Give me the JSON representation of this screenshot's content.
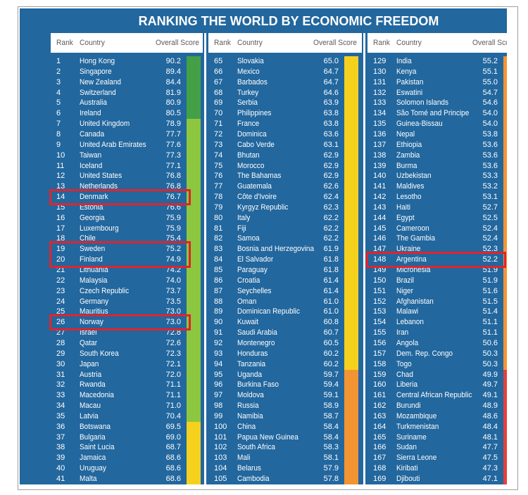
{
  "chart_data": {
    "type": "table",
    "title": "RANKING THE WORLD BY ECONOMIC FREEDOM",
    "headers": {
      "rank": "Rank",
      "country": "Country",
      "score": "Overall Score"
    },
    "colors": {
      "background": "#22679e",
      "header_background": "#ffffff",
      "header_text": "#5b5b5b",
      "row_text": "#ffffff",
      "highlight": "#e3232b"
    },
    "color_scale": [
      {
        "min": 80,
        "color": "#43a047"
      },
      {
        "min": 70,
        "color": "#8dc63f"
      },
      {
        "min": 60,
        "color": "#f5d11e"
      },
      {
        "min": 50,
        "color": "#f39433"
      },
      {
        "min": 0,
        "color": "#e2413b"
      }
    ],
    "panels": [
      {
        "highlighted_ranks": [
          [
            14
          ],
          [
            19,
            20
          ],
          [
            26
          ]
        ],
        "rows": [
          {
            "rank": 1,
            "country": "Hong Kong",
            "score": 90.2
          },
          {
            "rank": 2,
            "country": "Singapore",
            "score": 89.4
          },
          {
            "rank": 3,
            "country": "New Zealand",
            "score": 84.4
          },
          {
            "rank": 4,
            "country": "Switzerland",
            "score": 81.9
          },
          {
            "rank": 5,
            "country": "Australia",
            "score": 80.9
          },
          {
            "rank": 6,
            "country": "Ireland",
            "score": 80.5
          },
          {
            "rank": 7,
            "country": "United Kingdom",
            "score": 78.9
          },
          {
            "rank": 8,
            "country": "Canada",
            "score": 77.7
          },
          {
            "rank": 9,
            "country": "United Arab Emirates",
            "score": 77.6
          },
          {
            "rank": 10,
            "country": "Taiwan",
            "score": 77.3
          },
          {
            "rank": 11,
            "country": "Iceland",
            "score": 77.1
          },
          {
            "rank": 12,
            "country": "United States",
            "score": 76.8
          },
          {
            "rank": 13,
            "country": "Netherlands",
            "score": 76.8
          },
          {
            "rank": 14,
            "country": "Denmark",
            "score": 76.7
          },
          {
            "rank": 15,
            "country": "Estonia",
            "score": 76.6
          },
          {
            "rank": 16,
            "country": "Georgia",
            "score": 75.9
          },
          {
            "rank": 17,
            "country": "Luxembourg",
            "score": 75.9
          },
          {
            "rank": 18,
            "country": "Chile",
            "score": 75.4
          },
          {
            "rank": 19,
            "country": "Sweden",
            "score": 75.2
          },
          {
            "rank": 20,
            "country": "Finland",
            "score": 74.9
          },
          {
            "rank": 21,
            "country": "Lithuania",
            "score": 74.2
          },
          {
            "rank": 22,
            "country": "Malaysia",
            "score": 74.0
          },
          {
            "rank": 23,
            "country": "Czech Republic",
            "score": 73.7
          },
          {
            "rank": 24,
            "country": "Germany",
            "score": 73.5
          },
          {
            "rank": 25,
            "country": "Mauritius",
            "score": 73.0
          },
          {
            "rank": 26,
            "country": "Norway",
            "score": 73.0
          },
          {
            "rank": 27,
            "country": "Israel",
            "score": 72.8
          },
          {
            "rank": 28,
            "country": "Qatar",
            "score": 72.6
          },
          {
            "rank": 29,
            "country": "South Korea",
            "score": 72.3
          },
          {
            "rank": 30,
            "country": "Japan",
            "score": 72.1
          },
          {
            "rank": 31,
            "country": "Austria",
            "score": 72.0
          },
          {
            "rank": 32,
            "country": "Rwanda",
            "score": 71.1
          },
          {
            "rank": 33,
            "country": "Macedonia",
            "score": 71.1
          },
          {
            "rank": 34,
            "country": "Macau",
            "score": 71.0
          },
          {
            "rank": 35,
            "country": "Latvia",
            "score": 70.4
          },
          {
            "rank": 36,
            "country": "Botswana",
            "score": 69.5
          },
          {
            "rank": 37,
            "country": "Bulgaria",
            "score": 69.0
          },
          {
            "rank": 38,
            "country": "Saint Lucia",
            "score": 68.7
          },
          {
            "rank": 39,
            "country": "Jamaica",
            "score": 68.6
          },
          {
            "rank": 40,
            "country": "Uruguay",
            "score": 68.6
          },
          {
            "rank": 41,
            "country": "Malta",
            "score": 68.6
          }
        ]
      },
      {
        "highlighted_ranks": [],
        "rows": [
          {
            "rank": 65,
            "country": "Slovakia",
            "score": 65.0
          },
          {
            "rank": 66,
            "country": "Mexico",
            "score": 64.7
          },
          {
            "rank": 67,
            "country": "Barbados",
            "score": 64.7
          },
          {
            "rank": 68,
            "country": "Turkey",
            "score": 64.6
          },
          {
            "rank": 69,
            "country": "Serbia",
            "score": 63.9
          },
          {
            "rank": 70,
            "country": "Philippines",
            "score": 63.8
          },
          {
            "rank": 71,
            "country": "France",
            "score": 63.8
          },
          {
            "rank": 72,
            "country": "Dominica",
            "score": 63.6
          },
          {
            "rank": 73,
            "country": "Cabo Verde",
            "score": 63.1
          },
          {
            "rank": 74,
            "country": "Bhutan",
            "score": 62.9
          },
          {
            "rank": 75,
            "country": "Morocco",
            "score": 62.9
          },
          {
            "rank": 76,
            "country": "The Bahamas",
            "score": 62.9
          },
          {
            "rank": 77,
            "country": "Guatemala",
            "score": 62.6
          },
          {
            "rank": 78,
            "country": "Côte d'Ivoire",
            "score": 62.4
          },
          {
            "rank": 79,
            "country": "Kyrgyz Republic",
            "score": 62.3
          },
          {
            "rank": 80,
            "country": "Italy",
            "score": 62.2
          },
          {
            "rank": 81,
            "country": "Fiji",
            "score": 62.2
          },
          {
            "rank": 82,
            "country": "Samoa",
            "score": 62.2
          },
          {
            "rank": 83,
            "country": "Bosnia and Herzegovina",
            "score": 61.9
          },
          {
            "rank": 84,
            "country": "El Salvador",
            "score": 61.8
          },
          {
            "rank": 85,
            "country": "Paraguay",
            "score": 61.8
          },
          {
            "rank": 86,
            "country": "Croatia",
            "score": 61.4
          },
          {
            "rank": 87,
            "country": "Seychelles",
            "score": 61.4
          },
          {
            "rank": 88,
            "country": "Oman",
            "score": 61.0
          },
          {
            "rank": 89,
            "country": "Dominican Republic",
            "score": 61.0
          },
          {
            "rank": 90,
            "country": "Kuwait",
            "score": 60.8
          },
          {
            "rank": 91,
            "country": "Saudi Arabia",
            "score": 60.7
          },
          {
            "rank": 92,
            "country": "Montenegro",
            "score": 60.5
          },
          {
            "rank": 93,
            "country": "Honduras",
            "score": 60.2
          },
          {
            "rank": 94,
            "country": "Tanzania",
            "score": 60.2
          },
          {
            "rank": 95,
            "country": "Uganda",
            "score": 59.7
          },
          {
            "rank": 96,
            "country": "Burkina Faso",
            "score": 59.4
          },
          {
            "rank": 97,
            "country": "Moldova",
            "score": 59.1
          },
          {
            "rank": 98,
            "country": "Russia",
            "score": 58.9
          },
          {
            "rank": 99,
            "country": "Namibia",
            "score": 58.7
          },
          {
            "rank": 100,
            "country": "China",
            "score": 58.4
          },
          {
            "rank": 101,
            "country": "Papua New Guinea",
            "score": 58.4
          },
          {
            "rank": 102,
            "country": "South Africa",
            "score": 58.3
          },
          {
            "rank": 103,
            "country": "Mali",
            "score": 58.1
          },
          {
            "rank": 104,
            "country": "Belarus",
            "score": 57.9
          },
          {
            "rank": 105,
            "country": "Cambodia",
            "score": 57.8
          }
        ]
      },
      {
        "highlighted_ranks": [
          [
            148
          ]
        ],
        "rows": [
          {
            "rank": 129,
            "country": "India",
            "score": 55.2
          },
          {
            "rank": 130,
            "country": "Kenya",
            "score": 55.1
          },
          {
            "rank": 131,
            "country": "Pakistan",
            "score": 55.0
          },
          {
            "rank": 132,
            "country": "Eswatini",
            "score": 54.7
          },
          {
            "rank": 133,
            "country": "Solomon Islands",
            "score": 54.6
          },
          {
            "rank": 134,
            "country": "São Tomé and Principe",
            "score": 54.0
          },
          {
            "rank": 135,
            "country": "Guinea-Bissau",
            "score": 54.0
          },
          {
            "rank": 136,
            "country": "Nepal",
            "score": 53.8
          },
          {
            "rank": 137,
            "country": "Ethiopia",
            "score": 53.6
          },
          {
            "rank": 138,
            "country": "Zambia",
            "score": 53.6
          },
          {
            "rank": 139,
            "country": "Burma",
            "score": 53.6
          },
          {
            "rank": 140,
            "country": "Uzbekistan",
            "score": 53.3
          },
          {
            "rank": 141,
            "country": "Maldives",
            "score": 53.2
          },
          {
            "rank": 142,
            "country": "Lesotho",
            "score": 53.1
          },
          {
            "rank": 143,
            "country": "Haiti",
            "score": 52.7
          },
          {
            "rank": 144,
            "country": "Egypt",
            "score": 52.5
          },
          {
            "rank": 145,
            "country": "Cameroon",
            "score": 52.4
          },
          {
            "rank": 146,
            "country": "The Gambia",
            "score": 52.4
          },
          {
            "rank": 147,
            "country": "Ukraine",
            "score": 52.3
          },
          {
            "rank": 148,
            "country": "Argentina",
            "score": 52.2
          },
          {
            "rank": 149,
            "country": "Micronesia",
            "score": 51.9
          },
          {
            "rank": 150,
            "country": "Brazil",
            "score": 51.9
          },
          {
            "rank": 151,
            "country": "Niger",
            "score": 51.6
          },
          {
            "rank": 152,
            "country": "Afghanistan",
            "score": 51.5
          },
          {
            "rank": 153,
            "country": "Malawi",
            "score": 51.4
          },
          {
            "rank": 154,
            "country": "Lebanon",
            "score": 51.1
          },
          {
            "rank": 155,
            "country": "Iran",
            "score": 51.1
          },
          {
            "rank": 156,
            "country": "Angola",
            "score": 50.6
          },
          {
            "rank": 157,
            "country": "Dem. Rep. Congo",
            "score": 50.3
          },
          {
            "rank": 158,
            "country": "Togo",
            "score": 50.3
          },
          {
            "rank": 159,
            "country": "Chad",
            "score": 49.9
          },
          {
            "rank": 160,
            "country": "Liberia",
            "score": 49.7
          },
          {
            "rank": 161,
            "country": "Central African Republic",
            "score": 49.1
          },
          {
            "rank": 162,
            "country": "Burundi",
            "score": 48.9
          },
          {
            "rank": 163,
            "country": "Mozambique",
            "score": 48.6
          },
          {
            "rank": 164,
            "country": "Turkmenistan",
            "score": 48.4
          },
          {
            "rank": 165,
            "country": "Suriname",
            "score": 48.1
          },
          {
            "rank": 166,
            "country": "Sudan",
            "score": 47.7
          },
          {
            "rank": 167,
            "country": "Sierra Leone",
            "score": 47.5
          },
          {
            "rank": 168,
            "country": "Kiribati",
            "score": 47.3
          },
          {
            "rank": 169,
            "country": "Djibouti",
            "score": 47.1
          }
        ]
      }
    ]
  }
}
